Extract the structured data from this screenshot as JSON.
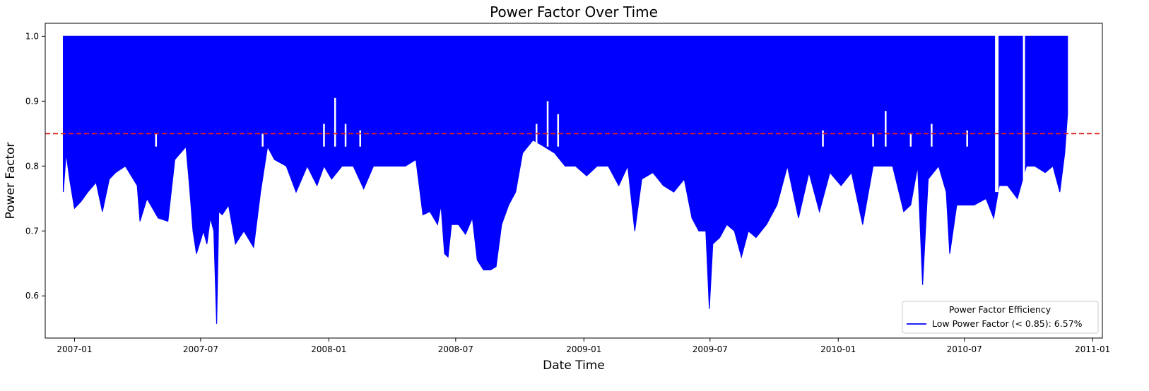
{
  "chart_data": {
    "type": "line",
    "title": "Power Factor Over Time",
    "xlabel": "Date Time",
    "ylabel": "Power Factor",
    "xlim": [
      "2006-11-20",
      "2011-01-15"
    ],
    "ylim": [
      0.535,
      1.02
    ],
    "x_ticks": [
      "2007-01",
      "2007-07",
      "2008-01",
      "2008-07",
      "2009-01",
      "2009-07",
      "2010-01",
      "2010-07",
      "2011-01"
    ],
    "y_ticks": [
      0.6,
      0.7,
      0.8,
      0.9,
      1.0
    ],
    "y_tick_labels": [
      "0.6",
      "0.7",
      "0.8",
      "0.9",
      "1.0"
    ],
    "grid": false,
    "threshold": {
      "value": 0.85,
      "color": "#e02020",
      "style": "dashed"
    },
    "legend": {
      "title": "Power Factor Efficiency",
      "placement": "lower-right",
      "entries": [
        {
          "label": "Low Power Factor (< 0.85): 6.57%",
          "color": "#0000ff"
        }
      ]
    },
    "series": [
      {
        "color": "#0000ff",
        "upper": 1.0,
        "min_envelope": [
          [
            "2006-12-16",
            0.76
          ],
          [
            "2006-12-20",
            0.82
          ],
          [
            "2006-12-25",
            0.78
          ],
          [
            "2007-01-01",
            0.735
          ],
          [
            "2007-01-10",
            0.745
          ],
          [
            "2007-01-20",
            0.76
          ],
          [
            "2007-02-01",
            0.775
          ],
          [
            "2007-02-10",
            0.73
          ],
          [
            "2007-02-20",
            0.78
          ],
          [
            "2007-03-01",
            0.79
          ],
          [
            "2007-03-15",
            0.8
          ],
          [
            "2007-04-01",
            0.77
          ],
          [
            "2007-04-05",
            0.715
          ],
          [
            "2007-04-15",
            0.75
          ],
          [
            "2007-05-01",
            0.72
          ],
          [
            "2007-05-15",
            0.715
          ],
          [
            "2007-05-25",
            0.81
          ],
          [
            "2007-06-10",
            0.83
          ],
          [
            "2007-06-15",
            0.77
          ],
          [
            "2007-06-20",
            0.7
          ],
          [
            "2007-06-25",
            0.665
          ],
          [
            "2007-07-05",
            0.7
          ],
          [
            "2007-07-10",
            0.68
          ],
          [
            "2007-07-15",
            0.72
          ],
          [
            "2007-07-20",
            0.7
          ],
          [
            "2007-07-24",
            0.557
          ],
          [
            "2007-07-27",
            0.73
          ],
          [
            "2007-08-01",
            0.725
          ],
          [
            "2007-08-10",
            0.74
          ],
          [
            "2007-08-20",
            0.68
          ],
          [
            "2007-09-01",
            0.7
          ],
          [
            "2007-09-15",
            0.675
          ],
          [
            "2007-09-25",
            0.76
          ],
          [
            "2007-10-05",
            0.83
          ],
          [
            "2007-10-15",
            0.81
          ],
          [
            "2007-11-01",
            0.8
          ],
          [
            "2007-11-15",
            0.76
          ],
          [
            "2007-12-01",
            0.8
          ],
          [
            "2007-12-15",
            0.77
          ],
          [
            "2007-12-25",
            0.8
          ],
          [
            "2008-01-05",
            0.78
          ],
          [
            "2008-01-20",
            0.8
          ],
          [
            "2008-02-05",
            0.8
          ],
          [
            "2008-02-20",
            0.765
          ],
          [
            "2008-03-05",
            0.8
          ],
          [
            "2008-03-20",
            0.8
          ],
          [
            "2008-04-05",
            0.8
          ],
          [
            "2008-04-20",
            0.8
          ],
          [
            "2008-05-05",
            0.81
          ],
          [
            "2008-05-15",
            0.725
          ],
          [
            "2008-05-25",
            0.73
          ],
          [
            "2008-06-05",
            0.71
          ],
          [
            "2008-06-10",
            0.74
          ],
          [
            "2008-06-15",
            0.665
          ],
          [
            "2008-06-20",
            0.66
          ],
          [
            "2008-06-25",
            0.71
          ],
          [
            "2008-07-05",
            0.71
          ],
          [
            "2008-07-15",
            0.695
          ],
          [
            "2008-07-25",
            0.72
          ],
          [
            "2008-08-01",
            0.655
          ],
          [
            "2008-08-10",
            0.64
          ],
          [
            "2008-08-20",
            0.64
          ],
          [
            "2008-08-28",
            0.645
          ],
          [
            "2008-09-05",
            0.71
          ],
          [
            "2008-09-15",
            0.74
          ],
          [
            "2008-09-25",
            0.76
          ],
          [
            "2008-10-05",
            0.82
          ],
          [
            "2008-10-20",
            0.84
          ],
          [
            "2008-11-05",
            0.83
          ],
          [
            "2008-11-20",
            0.82
          ],
          [
            "2008-12-05",
            0.8
          ],
          [
            "2008-12-20",
            0.8
          ],
          [
            "2009-01-05",
            0.785
          ],
          [
            "2009-01-20",
            0.8
          ],
          [
            "2009-02-05",
            0.8
          ],
          [
            "2009-02-20",
            0.77
          ],
          [
            "2009-03-05",
            0.8
          ],
          [
            "2009-03-15",
            0.7
          ],
          [
            "2009-03-25",
            0.78
          ],
          [
            "2009-04-10",
            0.79
          ],
          [
            "2009-04-25",
            0.77
          ],
          [
            "2009-05-10",
            0.76
          ],
          [
            "2009-05-25",
            0.78
          ],
          [
            "2009-06-05",
            0.72
          ],
          [
            "2009-06-15",
            0.7
          ],
          [
            "2009-06-25",
            0.7
          ],
          [
            "2009-06-30",
            0.58
          ],
          [
            "2009-07-05",
            0.68
          ],
          [
            "2009-07-15",
            0.69
          ],
          [
            "2009-07-25",
            0.71
          ],
          [
            "2009-08-05",
            0.7
          ],
          [
            "2009-08-15",
            0.66
          ],
          [
            "2009-08-25",
            0.7
          ],
          [
            "2009-09-05",
            0.69
          ],
          [
            "2009-09-20",
            0.71
          ],
          [
            "2009-10-05",
            0.74
          ],
          [
            "2009-10-20",
            0.8
          ],
          [
            "2009-11-05",
            0.72
          ],
          [
            "2009-11-20",
            0.79
          ],
          [
            "2009-12-05",
            0.73
          ],
          [
            "2009-12-20",
            0.79
          ],
          [
            "2010-01-05",
            0.77
          ],
          [
            "2010-01-20",
            0.79
          ],
          [
            "2010-02-05",
            0.71
          ],
          [
            "2010-02-20",
            0.8
          ],
          [
            "2010-03-05",
            0.8
          ],
          [
            "2010-03-20",
            0.8
          ],
          [
            "2010-04-05",
            0.73
          ],
          [
            "2010-04-15",
            0.74
          ],
          [
            "2010-04-25",
            0.8
          ],
          [
            "2010-05-02",
            0.617
          ],
          [
            "2010-05-10",
            0.78
          ],
          [
            "2010-05-25",
            0.8
          ],
          [
            "2010-06-05",
            0.76
          ],
          [
            "2010-06-10",
            0.665
          ],
          [
            "2010-06-20",
            0.74
          ],
          [
            "2010-07-01",
            0.74
          ],
          [
            "2010-07-15",
            0.74
          ],
          [
            "2010-08-01",
            0.75
          ],
          [
            "2010-08-12",
            0.72
          ],
          [
            "2010-08-20",
            0.77
          ],
          [
            "2010-09-01",
            0.77
          ],
          [
            "2010-09-15",
            0.75
          ],
          [
            "2010-09-28",
            0.8
          ],
          [
            "2010-10-10",
            0.8
          ],
          [
            "2010-10-25",
            0.79
          ],
          [
            "2010-11-05",
            0.8
          ],
          [
            "2010-11-15",
            0.76
          ],
          [
            "2010-11-22",
            0.82
          ],
          [
            "2010-11-26",
            0.88
          ]
        ],
        "gaps": [
          [
            "2010-08-14",
            "2010-08-19"
          ],
          [
            "2010-09-23",
            "2010-09-26"
          ]
        ],
        "spikes": [
          [
            "2007-04-28",
            0.85
          ],
          [
            "2007-09-28",
            0.85
          ],
          [
            "2007-12-25",
            0.865
          ],
          [
            "2008-01-10",
            0.905
          ],
          [
            "2008-01-25",
            0.865
          ],
          [
            "2008-02-15",
            0.855
          ],
          [
            "2008-10-25",
            0.865
          ],
          [
            "2008-11-10",
            0.9
          ],
          [
            "2008-11-25",
            0.88
          ],
          [
            "2009-12-10",
            0.855
          ],
          [
            "2010-02-20",
            0.85
          ],
          [
            "2010-03-10",
            0.885
          ],
          [
            "2010-04-15",
            0.85
          ],
          [
            "2010-05-15",
            0.865
          ],
          [
            "2010-07-05",
            0.855
          ]
        ]
      }
    ]
  }
}
